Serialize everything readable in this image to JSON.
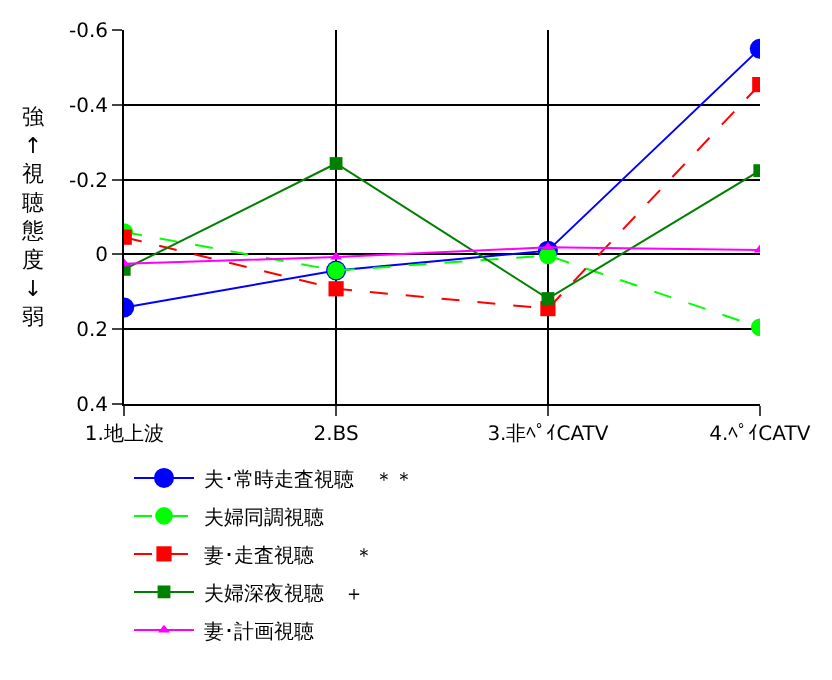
{
  "chart_data": {
    "type": "line",
    "ylabel": "強↑視聴態度↓弱",
    "categories": [
      "1.地上波",
      "2.BS",
      "3.非ﾍﾟｲCATV",
      "4.ﾍﾟｲCATV"
    ],
    "ylim": [
      0.4,
      -0.6
    ],
    "yticks": [
      -0.6,
      -0.4,
      -0.2,
      0,
      0.2,
      0.4
    ],
    "grid": true,
    "legend": "bottom",
    "series": [
      {
        "name": "夫･常時走査視聴　＊＊",
        "color": "#0000ff",
        "marker": "circle",
        "line_style": "solid",
        "values": [
          0.142,
          0.043,
          -0.01,
          -0.55
        ]
      },
      {
        "name": "夫婦同調視聴",
        "color": "#00ff00",
        "marker": "circle",
        "line_style": "dashed",
        "values": [
          -0.06,
          0.043,
          0.003,
          0.195
        ]
      },
      {
        "name": "妻･走査視聴　　＊",
        "color": "#ff0000",
        "marker": "square",
        "line_style": "dashed",
        "values": [
          -0.046,
          0.092,
          0.145,
          -0.454
        ]
      },
      {
        "name": "夫婦深夜視聴　＋",
        "color": "#008000",
        "marker": "square",
        "line_style": "solid",
        "values": [
          0.04,
          -0.243,
          0.118,
          -0.224
        ]
      },
      {
        "name": "妻･計画視聴",
        "color": "#ff00ff",
        "marker": "triangle",
        "line_style": "solid",
        "values": [
          0.025,
          0.007,
          -0.019,
          -0.012
        ]
      }
    ]
  }
}
